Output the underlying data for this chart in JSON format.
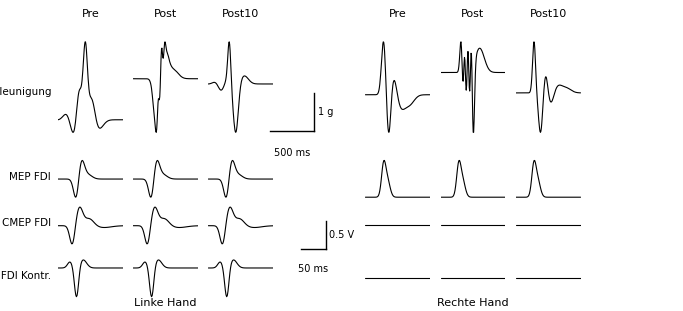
{
  "title": "",
  "bg_color": "#ffffff",
  "line_color": "#000000",
  "col_headers_left": [
    "Pre",
    "Post",
    "Post10"
  ],
  "col_headers_right": [
    "Pre",
    "Post",
    "Post10"
  ],
  "row_labels": [
    "Beschleunigung",
    "MEP FDI",
    "CMEP FDI",
    "MEP FDI Kontr."
  ],
  "bottom_label_left": "Linke Hand",
  "bottom_label_right": "Rechte Hand",
  "scalebar_accel_x": "500 ms",
  "scalebar_accel_y": "1 g",
  "scalebar_mep_x": "50 ms",
  "scalebar_mep_y": "0.5 V",
  "fontsize_header": 8,
  "fontsize_label": 7.5,
  "fontsize_scalebar": 7,
  "lw_trace": 0.8,
  "lw_scalebar": 1.0
}
